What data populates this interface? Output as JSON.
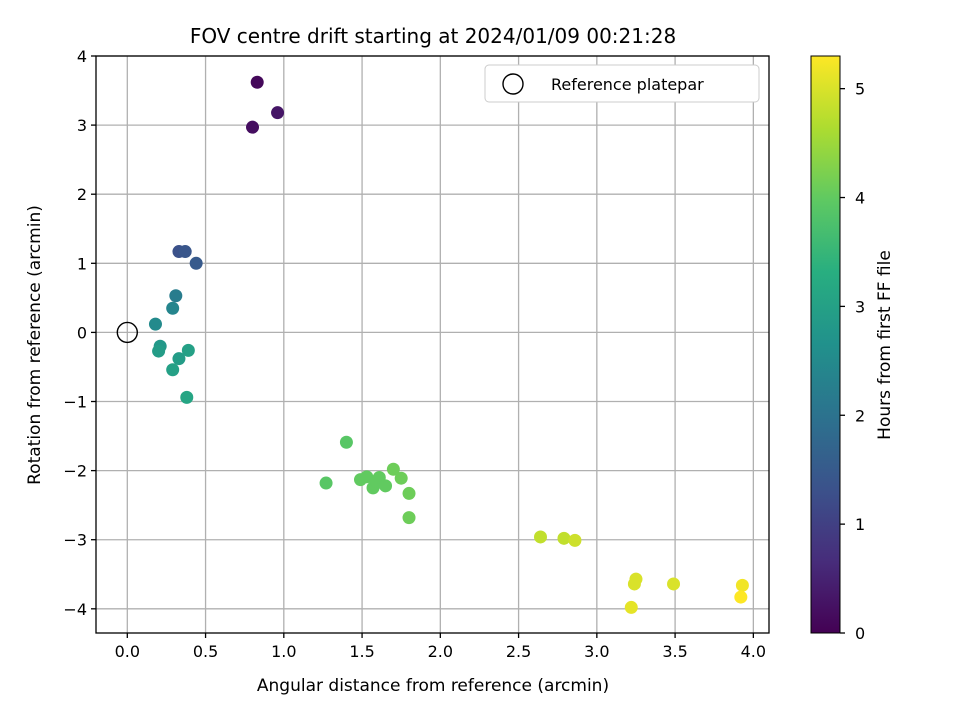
{
  "chart_data": {
    "type": "scatter",
    "title": "FOV centre drift starting at 2024/01/09 00:21:28",
    "xlabel": "Angular distance from reference (arcmin)",
    "ylabel": "Rotation from reference (arcmin)",
    "xlim": [
      -0.2,
      4.1
    ],
    "ylim": [
      -4.35,
      4.0
    ],
    "xticks": [
      0.0,
      0.5,
      1.0,
      1.5,
      2.0,
      2.5,
      3.0,
      3.5,
      4.0
    ],
    "xtick_labels": [
      "0.0",
      "0.5",
      "1.0",
      "1.5",
      "2.0",
      "2.5",
      "3.0",
      "3.5",
      "4.0"
    ],
    "yticks": [
      -4,
      -3,
      -2,
      -1,
      0,
      1,
      2,
      3,
      4
    ],
    "ytick_labels": [
      "−4",
      "−3",
      "−2",
      "−1",
      "0",
      "1",
      "2",
      "3",
      "4"
    ],
    "grid": true,
    "legend": {
      "placement": "top-right",
      "entries": [
        "Reference platepar"
      ]
    },
    "reference_point": {
      "x": 0.0,
      "y": 0.0
    },
    "colorbar": {
      "label": "Hours from first FF file",
      "colormap": "viridis",
      "range": [
        0,
        5.3
      ],
      "ticks": [
        0,
        1,
        2,
        3,
        4,
        5
      ],
      "tick_labels": [
        "0",
        "1",
        "2",
        "3",
        "4",
        "5"
      ]
    },
    "points": [
      {
        "x": 0.83,
        "y": 3.62,
        "hours": 0.1
      },
      {
        "x": 0.96,
        "y": 3.18,
        "hours": 0.3
      },
      {
        "x": 0.8,
        "y": 2.97,
        "hours": 0.2
      },
      {
        "x": 0.33,
        "y": 1.17,
        "hours": 1.3
      },
      {
        "x": 0.37,
        "y": 1.17,
        "hours": 1.4
      },
      {
        "x": 0.44,
        "y": 1.0,
        "hours": 1.5
      },
      {
        "x": 0.31,
        "y": 0.53,
        "hours": 2.2
      },
      {
        "x": 0.29,
        "y": 0.35,
        "hours": 2.4
      },
      {
        "x": 0.18,
        "y": 0.12,
        "hours": 2.5
      },
      {
        "x": 0.21,
        "y": -0.2,
        "hours": 2.8
      },
      {
        "x": 0.2,
        "y": -0.27,
        "hours": 2.9
      },
      {
        "x": 0.39,
        "y": -0.26,
        "hours": 3.0
      },
      {
        "x": 0.33,
        "y": -0.38,
        "hours": 2.9
      },
      {
        "x": 0.29,
        "y": -0.54,
        "hours": 3.0
      },
      {
        "x": 0.38,
        "y": -0.94,
        "hours": 3.1
      },
      {
        "x": 1.4,
        "y": -1.59,
        "hours": 3.9
      },
      {
        "x": 1.27,
        "y": -2.18,
        "hours": 3.9
      },
      {
        "x": 1.49,
        "y": -2.13,
        "hours": 4.0
      },
      {
        "x": 1.53,
        "y": -2.09,
        "hours": 4.0
      },
      {
        "x": 1.57,
        "y": -2.25,
        "hours": 4.0
      },
      {
        "x": 1.59,
        "y": -2.15,
        "hours": 4.0
      },
      {
        "x": 1.61,
        "y": -2.1,
        "hours": 4.0
      },
      {
        "x": 1.65,
        "y": -2.22,
        "hours": 4.0
      },
      {
        "x": 1.7,
        "y": -1.98,
        "hours": 4.1
      },
      {
        "x": 1.75,
        "y": -2.11,
        "hours": 4.1
      },
      {
        "x": 1.8,
        "y": -2.33,
        "hours": 4.1
      },
      {
        "x": 1.8,
        "y": -2.68,
        "hours": 4.1
      },
      {
        "x": 2.64,
        "y": -2.96,
        "hours": 4.8
      },
      {
        "x": 2.79,
        "y": -2.98,
        "hours": 4.8
      },
      {
        "x": 2.86,
        "y": -3.01,
        "hours": 4.9
      },
      {
        "x": 3.25,
        "y": -3.57,
        "hours": 5.0
      },
      {
        "x": 3.24,
        "y": -3.64,
        "hours": 5.0
      },
      {
        "x": 3.22,
        "y": -3.98,
        "hours": 5.1
      },
      {
        "x": 3.49,
        "y": -3.64,
        "hours": 5.0
      },
      {
        "x": 3.93,
        "y": -3.66,
        "hours": 5.2
      },
      {
        "x": 3.92,
        "y": -3.83,
        "hours": 5.3
      }
    ]
  }
}
